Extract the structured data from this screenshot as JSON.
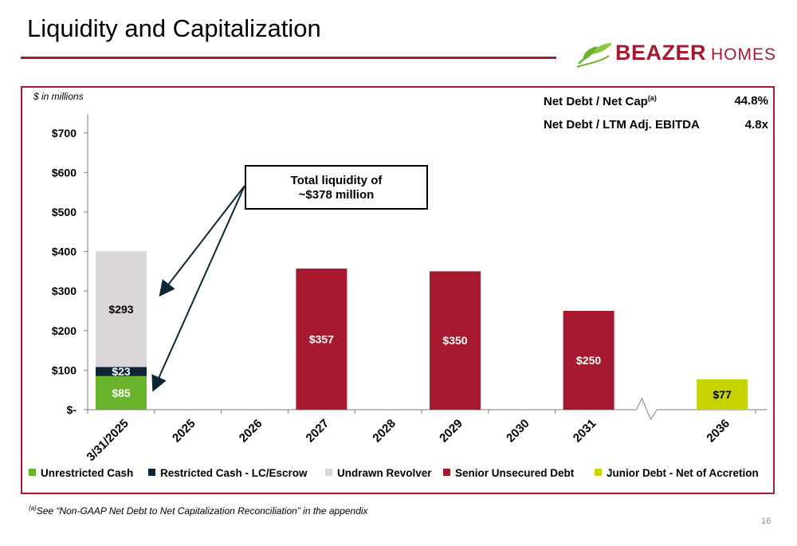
{
  "page": {
    "title": "Liquidity and Capitalization",
    "logo": {
      "brand": "BEAZER",
      "suffix": "HOMES",
      "icon": "leaf-icon"
    },
    "units_note": "$ in millions",
    "metrics": [
      {
        "label": "Net Debt / Net Cap",
        "superscript": "(a)",
        "value": "44.8%"
      },
      {
        "label": "Net Debt / LTM Adj. EBITDA",
        "superscript": "",
        "value": "4.8x"
      }
    ],
    "callout": {
      "line1": "Total liquidity of",
      "line2": "~$378 million"
    },
    "footnote": {
      "marker": "(a)",
      "text": "See “Non-GAAP Net Debt to Net Capitalization Reconciliation” in the appendix"
    },
    "page_number": "16"
  },
  "colors": {
    "accent": "#a6192e",
    "unrestricted_cash": "#6ab42d",
    "restricted_cash": "#0d2535",
    "undrawn_revolver": "#d9d5d9",
    "senior_unsecured_debt": "#a6192e",
    "junior_debt": "#c8d400"
  },
  "chart_data": {
    "type": "bar",
    "stacked": true,
    "title": "",
    "xlabel": "",
    "ylabel": "",
    "ylim": [
      0,
      750
    ],
    "yticks": [
      {
        "value": 0,
        "label": "$-"
      },
      {
        "value": 100,
        "label": "$100"
      },
      {
        "value": 200,
        "label": "$200"
      },
      {
        "value": 300,
        "label": "$300"
      },
      {
        "value": 400,
        "label": "$400"
      },
      {
        "value": 500,
        "label": "$500"
      },
      {
        "value": 600,
        "label": "$600"
      },
      {
        "value": 700,
        "label": "$700"
      }
    ],
    "categories": [
      "3/31/2025",
      "2025",
      "2026",
      "2027",
      "2028",
      "2029",
      "2030",
      "2031",
      "",
      "2036"
    ],
    "axis_break_after": "2031",
    "legend_position": "bottom",
    "grid": false,
    "series": [
      {
        "name": "Unrestricted Cash",
        "color": "#6ab42d",
        "values": [
          85,
          0,
          0,
          0,
          0,
          0,
          0,
          0,
          0,
          0
        ],
        "labels": [
          "$85",
          "",
          "",
          "",
          "",
          "",
          "",
          "",
          "",
          ""
        ],
        "label_color": "#ffffff"
      },
      {
        "name": "Restricted Cash - LC/Escrow",
        "color": "#0d2535",
        "values": [
          23,
          0,
          0,
          0,
          0,
          0,
          0,
          0,
          0,
          0
        ],
        "labels": [
          "$23",
          "",
          "",
          "",
          "",
          "",
          "",
          "",
          "",
          ""
        ],
        "label_color": "#ffffff"
      },
      {
        "name": "Undrawn Revolver",
        "color": "#d9d5d9",
        "values": [
          293,
          0,
          0,
          0,
          0,
          0,
          0,
          0,
          0,
          0
        ],
        "labels": [
          "$293",
          "",
          "",
          "",
          "",
          "",
          "",
          "",
          "",
          ""
        ],
        "label_color": "#000000"
      },
      {
        "name": "Senior Unsecured Debt",
        "color": "#a6192e",
        "values": [
          0,
          0,
          0,
          357,
          0,
          350,
          0,
          250,
          0,
          0
        ],
        "labels": [
          "",
          "",
          "",
          "$357",
          "",
          "$350",
          "",
          "$250",
          "",
          ""
        ],
        "label_color": "#ffffff"
      },
      {
        "name": "Junior Debt - Net of Accretion",
        "color": "#c8d400",
        "values": [
          0,
          0,
          0,
          0,
          0,
          0,
          0,
          0,
          0,
          77
        ],
        "labels": [
          "",
          "",
          "",
          "",
          "",
          "",
          "",
          "",
          "",
          "$77"
        ],
        "label_color": "#000000"
      }
    ]
  }
}
